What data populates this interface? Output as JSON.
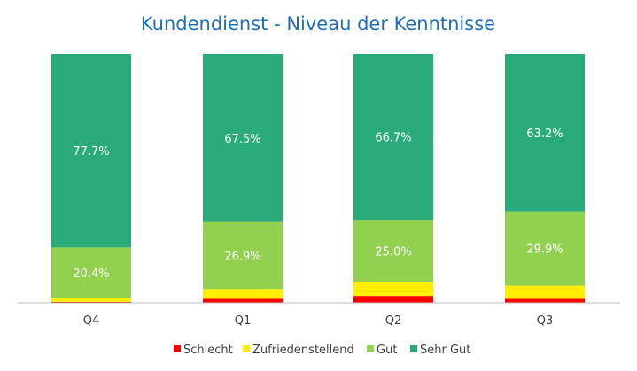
{
  "chart_data": {
    "type": "bar",
    "stacked": true,
    "normalized": true,
    "title": "Kundendienst - Niveau der Kenntnisse",
    "categories": [
      "Q4",
      "Q1",
      "Q2",
      "Q3"
    ],
    "ylim": [
      0,
      100
    ],
    "grid": false,
    "legend_position": "bottom",
    "series": [
      {
        "name": "Schlecht",
        "color": "#ff0000",
        "values": [
          0.4,
          1.6,
          2.8,
          1.6
        ],
        "labels": [
          "",
          "",
          "",
          ""
        ]
      },
      {
        "name": "Zufriedenstellend",
        "color": "#ffee00",
        "values": [
          1.5,
          4.0,
          5.5,
          5.3
        ],
        "labels": [
          "",
          "",
          "",
          ""
        ]
      },
      {
        "name": "Gut",
        "color": "#92d050",
        "values": [
          20.4,
          26.9,
          25.0,
          29.9
        ],
        "labels": [
          "20.4%",
          "26.9%",
          "25.0%",
          "29.9%"
        ]
      },
      {
        "name": "Sehr Gut",
        "color": "#2aac7a",
        "values": [
          77.7,
          67.5,
          66.7,
          63.2
        ],
        "labels": [
          "77.7%",
          "67.5%",
          "66.7%",
          "63.2%"
        ]
      }
    ]
  }
}
